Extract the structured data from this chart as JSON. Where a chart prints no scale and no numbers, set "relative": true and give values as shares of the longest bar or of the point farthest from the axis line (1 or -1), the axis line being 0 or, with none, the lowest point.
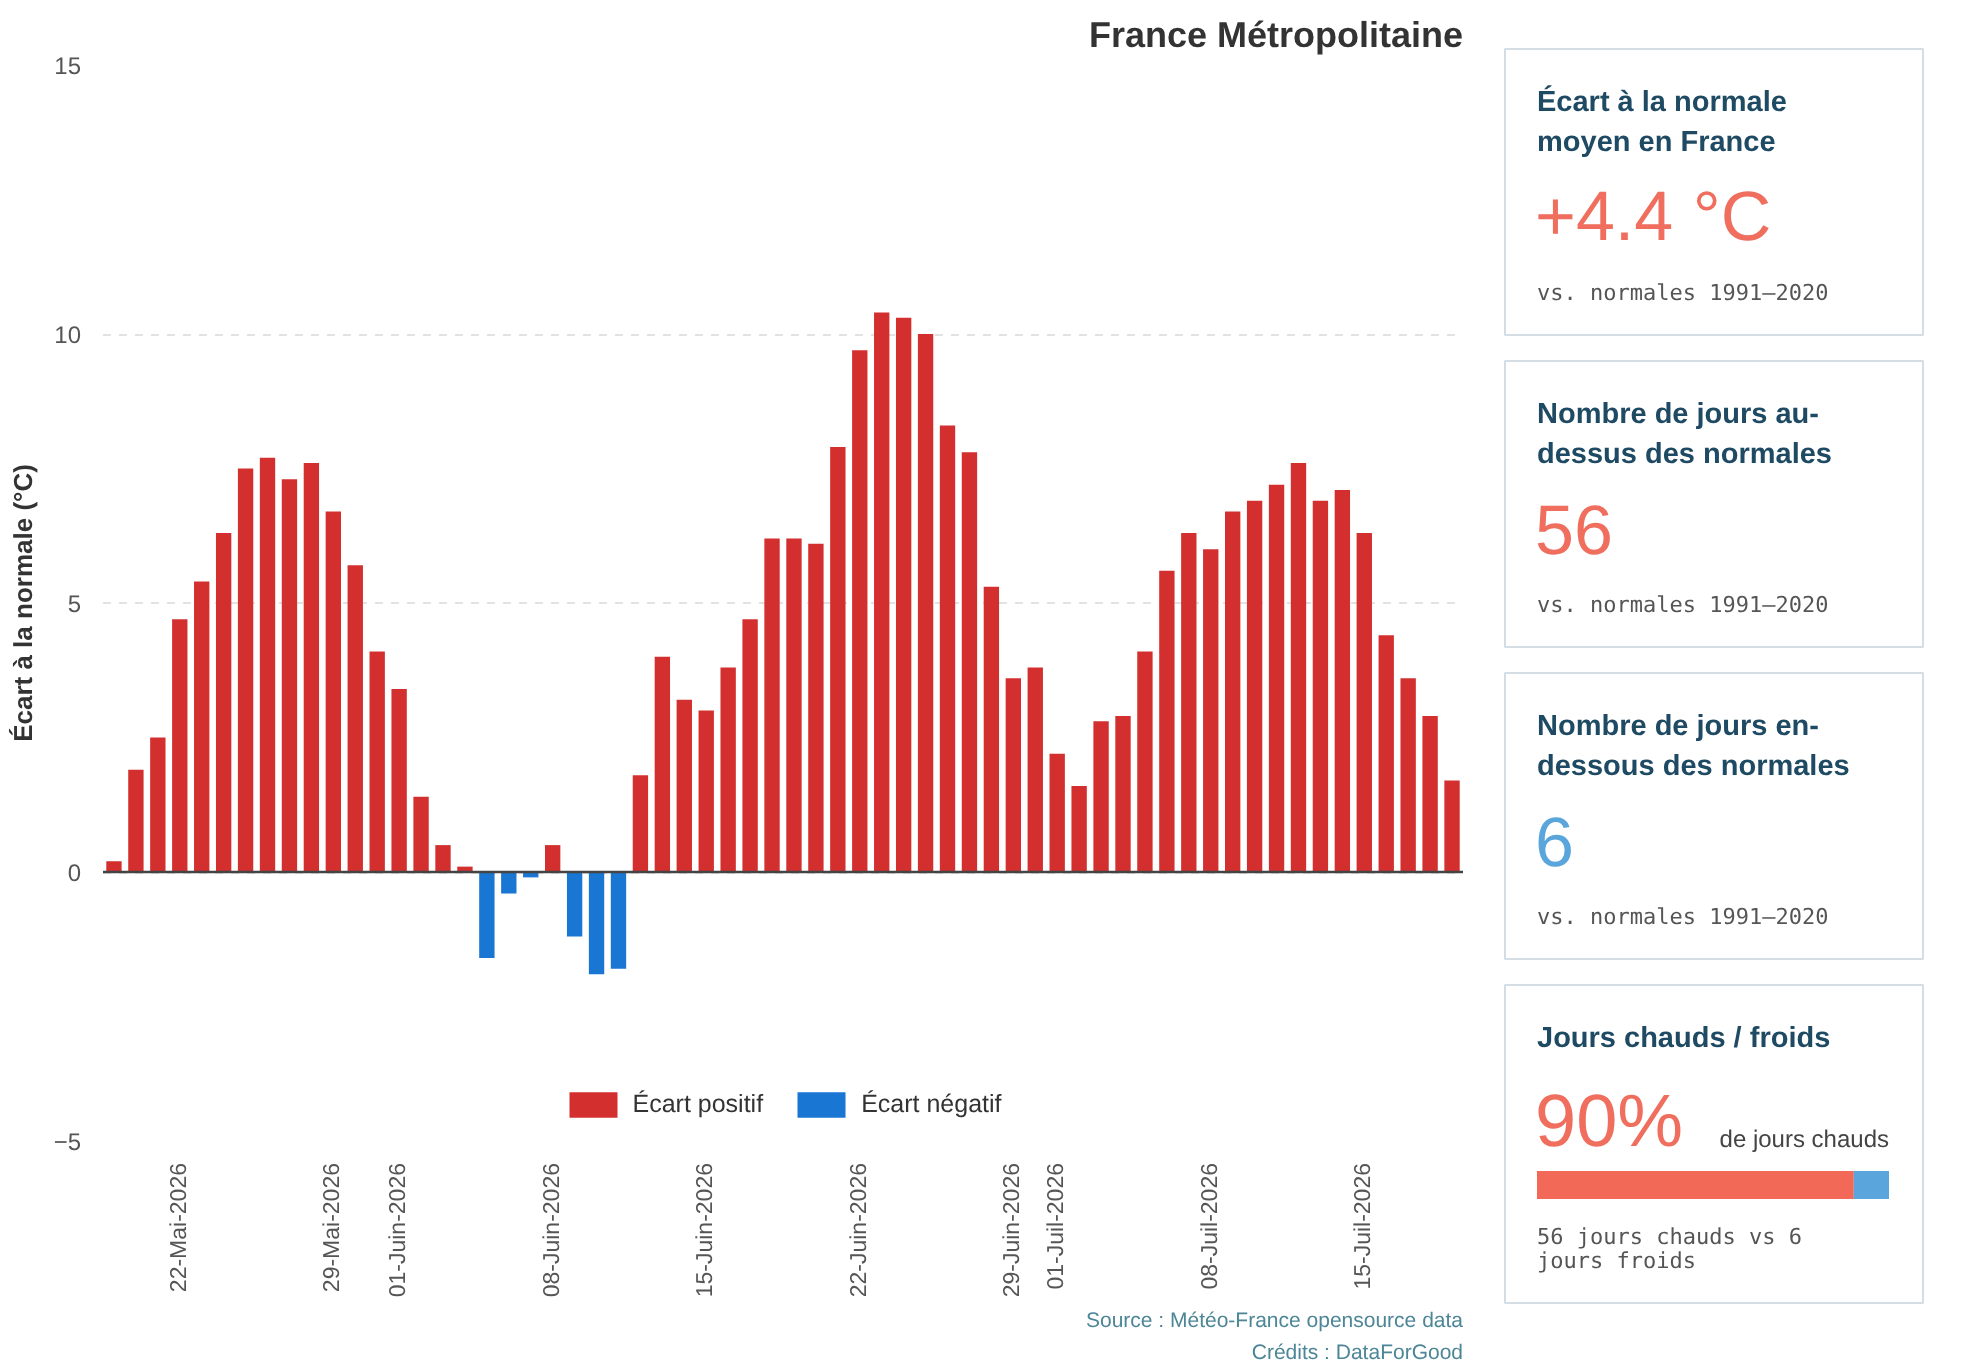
{
  "chart_data": [
    {
      "type": "bar",
      "title": "France Métropolitaine",
      "ylabel": "Écart à la normale (°C)",
      "x": [
        "2026-05-19",
        "2026-05-20",
        "2026-05-21",
        "2026-05-22",
        "2026-05-23",
        "2026-05-24",
        "2026-05-25",
        "2026-05-26",
        "2026-05-27",
        "2026-05-28",
        "2026-05-29",
        "2026-05-30",
        "2026-05-31",
        "2026-06-01",
        "2026-06-02",
        "2026-06-03",
        "2026-06-04",
        "2026-06-05",
        "2026-06-06",
        "2026-06-07",
        "2026-06-08",
        "2026-06-09",
        "2026-06-10",
        "2026-06-11",
        "2026-06-12",
        "2026-06-13",
        "2026-06-14",
        "2026-06-15",
        "2026-06-16",
        "2026-06-17",
        "2026-06-18",
        "2026-06-19",
        "2026-06-20",
        "2026-06-21",
        "2026-06-22",
        "2026-06-23",
        "2026-06-24",
        "2026-06-25",
        "2026-06-26",
        "2026-06-27",
        "2026-06-28",
        "2026-06-29",
        "2026-06-30",
        "2026-07-01",
        "2026-07-02",
        "2026-07-03",
        "2026-07-04",
        "2026-07-05",
        "2026-07-06",
        "2026-07-07",
        "2026-07-08",
        "2026-07-09",
        "2026-07-10",
        "2026-07-11",
        "2026-07-12",
        "2026-07-13",
        "2026-07-14",
        "2026-07-15",
        "2026-07-16",
        "2026-07-17",
        "2026-07-18",
        "2026-07-19"
      ],
      "xlim": [
        "2026-05-18T12:00",
        "2026-07-19T12:00"
      ],
      "xticks": [
        {
          "value": "2026-05-22",
          "label": "22-Mai-2026"
        },
        {
          "value": "2026-05-29",
          "label": "29-Mai-2026"
        },
        {
          "value": "2026-06-01",
          "label": "01-Juin-2026"
        },
        {
          "value": "2026-06-08",
          "label": "08-Juin-2026"
        },
        {
          "value": "2026-06-15",
          "label": "15-Juin-2026"
        },
        {
          "value": "2026-06-22",
          "label": "22-Juin-2026"
        },
        {
          "value": "2026-06-29",
          "label": "29-Juin-2026"
        },
        {
          "value": "2026-07-01",
          "label": "01-Juil-2026"
        },
        {
          "value": "2026-07-08",
          "label": "08-Juil-2026"
        },
        {
          "value": "2026-07-15",
          "label": "15-Juil-2026"
        }
      ],
      "ylim": [
        -5,
        15
      ],
      "yticks": [
        -5,
        0,
        5,
        10,
        15
      ],
      "series": [
        {
          "name": "Écart positif",
          "color": "#d32f2f",
          "values": [
            0.2,
            1.9,
            2.5,
            4.7,
            5.4,
            6.3,
            7.5,
            7.7,
            7.3,
            7.6,
            6.7,
            5.7,
            4.1,
            3.4,
            1.4,
            0.5,
            0.1,
            null,
            null,
            null,
            0.5,
            null,
            null,
            null,
            1.8,
            4.0,
            3.2,
            3.0,
            3.8,
            4.7,
            6.2,
            6.2,
            6.1,
            7.9,
            9.7,
            10.4,
            10.3,
            10.0,
            8.3,
            7.8,
            5.3,
            3.6,
            3.8,
            2.2,
            1.6,
            2.8,
            2.9,
            4.1,
            5.6,
            6.3,
            6.0,
            6.7,
            6.9,
            7.2,
            7.6,
            6.9,
            7.1,
            6.3,
            4.4,
            3.6,
            2.9,
            1.7
          ]
        },
        {
          "name": "Écart négatif",
          "color": "#1976d2",
          "values": [
            null,
            null,
            null,
            null,
            null,
            null,
            null,
            null,
            null,
            null,
            null,
            null,
            null,
            null,
            null,
            null,
            null,
            -1.6,
            -0.4,
            -0.1,
            null,
            -1.2,
            -1.9,
            -1.8,
            null,
            null,
            null,
            null,
            null,
            null,
            null,
            null,
            null,
            null,
            null,
            null,
            null,
            null,
            null,
            null,
            null,
            null,
            null,
            null,
            null,
            null,
            null,
            null,
            null,
            null,
            null,
            null,
            null,
            null,
            null,
            null,
            null,
            null,
            null,
            null,
            null,
            null
          ]
        }
      ],
      "ref_lines": [
        {
          "axis": "y",
          "value": 0,
          "color": "#444444"
        }
      ],
      "grid": "y",
      "legend": "bottom",
      "annotations": [
        "Source : Météo-France opensource data",
        "Crédits : DataForGood"
      ]
    },
    {
      "type": "other",
      "title": "Écart à la normale moyen en France",
      "annotations": [
        "+4.4 °C",
        "vs. normales 1991–2020"
      ]
    },
    {
      "type": "other",
      "title": "Nombre de jours au-dessus des normales",
      "annotations": [
        "56",
        "vs. normales 1991–2020"
      ]
    },
    {
      "type": "other",
      "title": "Nombre de jours en-dessous des normales",
      "annotations": [
        "6",
        "vs. normales 1991–2020"
      ]
    },
    {
      "type": "bar",
      "orientation": "horizontal",
      "stacked": true,
      "relative": true,
      "title": "Jours chauds / froids",
      "categories": [
        null
      ],
      "series": [
        {
          "color": "#f26a57",
          "values": [
            0.9
          ]
        },
        {
          "color": "#5aa6dc",
          "values": [
            0.1
          ]
        }
      ],
      "annotations": [
        "90%",
        "de jours chauds",
        "56 jours chauds vs 6 jours froids"
      ]
    }
  ]
}
